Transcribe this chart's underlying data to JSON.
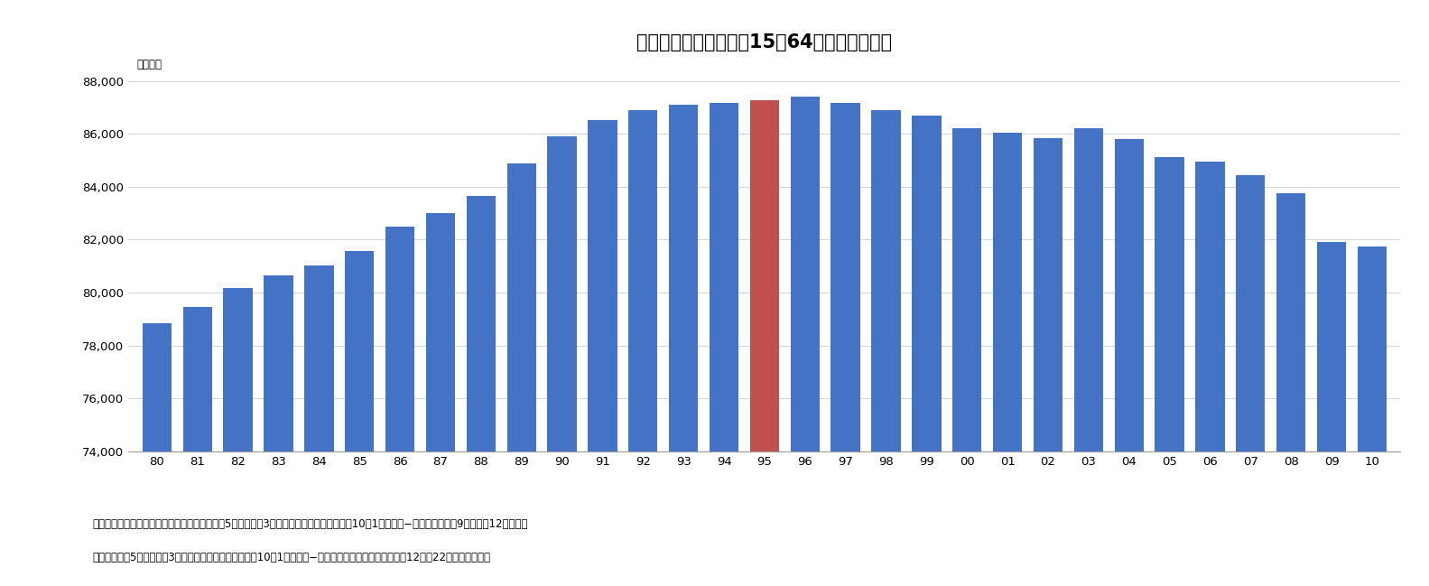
{
  "title": "グラフ３　生産年齢（15～64歳）人口の推移",
  "ylabel": "（千人）",
  "categories": [
    "80",
    "81",
    "82",
    "83",
    "84",
    "85",
    "86",
    "87",
    "88",
    "89",
    "90",
    "91",
    "92",
    "93",
    "94",
    "95",
    "96",
    "97",
    "98",
    "99",
    "00",
    "01",
    "02",
    "03",
    "04",
    "05",
    "06",
    "07",
    "08",
    "09",
    "10"
  ],
  "values": [
    78835,
    79457,
    80153,
    80643,
    81032,
    81562,
    82506,
    83010,
    83668,
    84881,
    85904,
    86520,
    86900,
    87115,
    87165,
    87261,
    87400,
    87165,
    86900,
    86680,
    86220,
    86050,
    85840,
    86220,
    85808,
    85105,
    84933,
    84433,
    83769,
    81900,
    81735
  ],
  "special_index": 15,
  "bar_color": "#4472C4",
  "special_color": "#C0504D",
  "background_color": "#FFFFFF",
  "ylim_min": 74000,
  "ylim_max": 88000,
  "yticks": [
    74000,
    76000,
    78000,
    80000,
    82000,
    84000,
    86000,
    88000
  ],
  "footnote_line1": "（資料）総務省統計局ホームページの「年齢（5歳階級及〇3区分），男女別人口　（各年10月1日現在）−総人口　（大正9年～平成12年）」お",
  "footnote_line2": "よび「年齢（5歳階級及〇3区分），男女別人口　（各年10月1日現在）−総人口，日本人人口　　（平成12年～22年）」より作成"
}
